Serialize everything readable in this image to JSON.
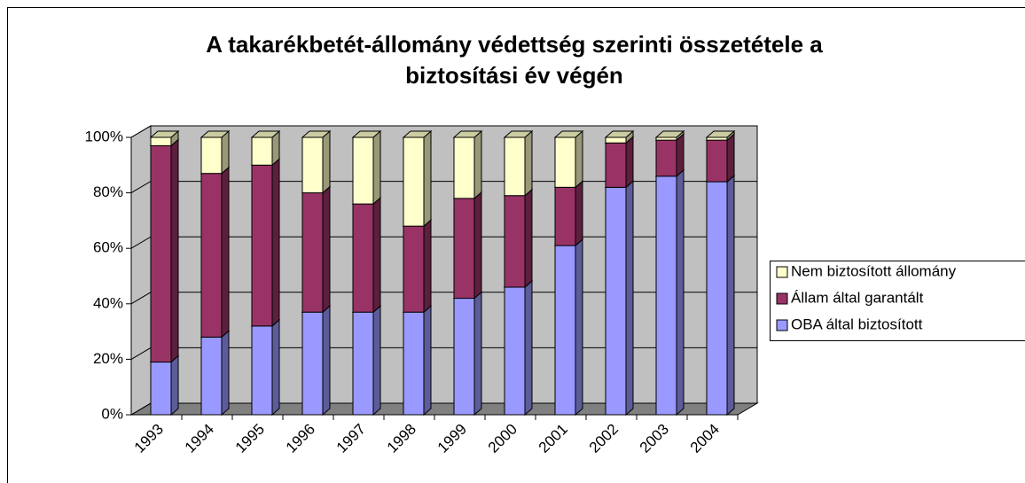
{
  "chart_data": {
    "type": "bar",
    "stacked": true,
    "title": [
      "A takarékbetét-állomány védettség szerinti összetétele a",
      "biztosítási év végén"
    ],
    "categories": [
      "1993",
      "1994",
      "1995",
      "1996",
      "1997",
      "1998",
      "1999",
      "2000",
      "2001",
      "2002",
      "2003",
      "2004"
    ],
    "series": [
      {
        "name": "OBA által biztosított",
        "color": "#9999ff",
        "values": [
          19,
          28,
          32,
          37,
          37,
          37,
          42,
          46,
          61,
          82,
          86,
          84
        ]
      },
      {
        "name": "Állam által garantált",
        "color": "#993366",
        "values": [
          78,
          59,
          58,
          43,
          39,
          31,
          36,
          33,
          21,
          16,
          13,
          15
        ]
      },
      {
        "name": "Nem biztosított állomány",
        "color": "#ffffcc",
        "values": [
          3,
          13,
          10,
          20,
          24,
          32,
          22,
          21,
          18,
          2,
          1,
          1
        ]
      }
    ],
    "ylim": [
      0,
      100
    ],
    "yticks": [
      {
        "value": 0,
        "label": "0%"
      },
      {
        "value": 20,
        "label": "20%"
      },
      {
        "value": 40,
        "label": "40%"
      },
      {
        "value": 60,
        "label": "60%"
      },
      {
        "value": 80,
        "label": "80%"
      },
      {
        "value": 100,
        "label": "100%"
      }
    ],
    "grid": true,
    "legend": "right"
  }
}
